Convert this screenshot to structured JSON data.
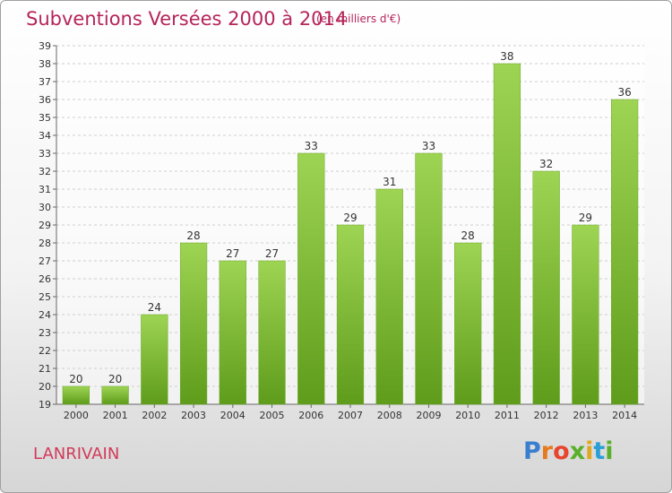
{
  "header": {
    "title": "Subventions Versées 2000 à 2014",
    "subtitle": "(en milliers d'€)"
  },
  "commune": "LANRIVAIN",
  "logo": {
    "text": "Proxiti"
  },
  "colors": {
    "title": "#b5245a",
    "bar_top": "#9ed453",
    "bar_bottom": "#5f9c1b",
    "commune": "#d23a5a"
  },
  "chart_data": {
    "type": "bar",
    "title": "Subventions Versées 2000 à 2014",
    "subtitle": "(en milliers d'€)",
    "xlabel": "",
    "ylabel": "",
    "ylim": [
      19,
      39
    ],
    "grid": true,
    "categories": [
      "2000",
      "2001",
      "2002",
      "2003",
      "2004",
      "2005",
      "2006",
      "2007",
      "2008",
      "2009",
      "2010",
      "2011",
      "2012",
      "2013",
      "2014"
    ],
    "values": [
      20,
      20,
      24,
      28,
      27,
      27,
      33,
      29,
      31,
      33,
      28,
      38,
      32,
      29,
      36
    ],
    "yticks": [
      19,
      20,
      21,
      22,
      23,
      24,
      25,
      26,
      27,
      28,
      29,
      30,
      31,
      32,
      33,
      34,
      35,
      36,
      37,
      38,
      39
    ]
  }
}
